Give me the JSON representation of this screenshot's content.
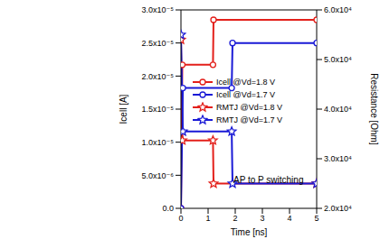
{
  "chart_data": {
    "type": "line",
    "x_label": "Time [ns]",
    "y_label": "Icell [A]",
    "y2_label": "Resistance [Ohm]",
    "annotation": "AP to P switching",
    "xlim": [
      0,
      5
    ],
    "xticks": [
      0,
      1,
      2,
      3,
      4,
      5
    ],
    "ylim": [
      0,
      3e-05
    ],
    "yticks": [
      {
        "value": 0,
        "label": "0.0"
      },
      {
        "value": 5e-06,
        "label": "5.0x10⁻⁶"
      },
      {
        "value": 1e-05,
        "label": "1.0x10⁻⁵"
      },
      {
        "value": 1.5e-05,
        "label": "1.5x10⁻⁵"
      },
      {
        "value": 2e-05,
        "label": "2.0x10⁻⁵"
      },
      {
        "value": 2.5e-05,
        "label": "2.5x10⁻⁵"
      },
      {
        "value": 3e-05,
        "label": "3.0x10⁻⁵"
      }
    ],
    "y2lim": [
      20000,
      60000
    ],
    "y2ticks": [
      {
        "value": 20000,
        "label": "2.0x10⁴"
      },
      {
        "value": 30000,
        "label": "3.0x10⁴"
      },
      {
        "value": 40000,
        "label": "4.0x10⁴"
      },
      {
        "value": 50000,
        "label": "5.0x10⁴"
      },
      {
        "value": 60000,
        "label": "6.0x10⁴"
      }
    ],
    "legend": "right",
    "grid": false,
    "series": [
      {
        "name": "Icell @Vd=1.8 V",
        "color": "#e3201b",
        "marker": "circle",
        "x": [
          0,
          0.05,
          1.18,
          1.2,
          5
        ],
        "values": [
          0,
          2.17e-05,
          2.17e-05,
          2.85e-05,
          2.85e-05
        ]
      },
      {
        "name": "Icell @Vd=1.7 V",
        "color": "#1a1ad6",
        "marker": "circle",
        "x": [
          0,
          0.07,
          1.87,
          1.9,
          5
        ],
        "values": [
          0,
          1.82e-05,
          1.82e-05,
          2.5e-05,
          2.5e-05
        ]
      },
      {
        "name": "RMTJ @Vd=1.8 V",
        "color": "#e3201b",
        "marker": "star",
        "axis": "y2",
        "x": [
          0,
          0.05,
          1.18,
          1.2,
          5
        ],
        "values": [
          54000,
          33700,
          33700,
          25000,
          25000
        ]
      },
      {
        "name": "RMTJ @Vd=1.7 V",
        "color": "#1a1ad6",
        "marker": "star",
        "axis": "y2",
        "x": [
          0,
          0.07,
          1.87,
          1.9,
          5
        ],
        "values": [
          55000,
          35500,
          35500,
          25000,
          25000
        ]
      }
    ]
  }
}
